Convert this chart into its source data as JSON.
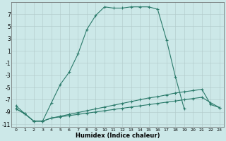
{
  "xlabel": "Humidex (Indice chaleur)",
  "bg_color": "#cce8e8",
  "grid_color": "#aaaaaa",
  "line_color": "#2a7a6a",
  "xlim": [
    -0.5,
    23.5
  ],
  "ylim": [
    -11.5,
    9.0
  ],
  "yticks": [
    -11,
    -9,
    -7,
    -5,
    -3,
    -1,
    1,
    3,
    5,
    7
  ],
  "xticks": [
    0,
    1,
    2,
    3,
    4,
    5,
    6,
    7,
    8,
    9,
    10,
    11,
    12,
    13,
    14,
    15,
    16,
    17,
    18,
    19,
    20,
    21,
    22,
    23
  ],
  "curve_main_x": [
    0,
    1,
    2,
    3,
    4,
    5,
    6,
    7,
    8,
    9,
    10,
    11,
    12,
    13,
    14,
    15,
    16,
    17,
    18,
    19
  ],
  "curve_main_y": [
    -8,
    -9.3,
    -10.5,
    -10.5,
    -7.5,
    -4.5,
    -2.5,
    0.5,
    4.5,
    6.8,
    8.2,
    8.0,
    8.0,
    8.2,
    8.2,
    8.2,
    7.8,
    2.8,
    -3.2,
    -8.5
  ],
  "curve2_x": [
    0,
    1,
    2,
    3,
    4,
    5,
    6,
    7,
    8,
    9,
    10,
    11,
    12,
    13,
    14,
    15,
    16,
    17,
    18,
    19,
    20,
    21,
    22,
    23
  ],
  "curve2_y": [
    -8.5,
    -9.3,
    -10.5,
    -10.5,
    -10.0,
    -9.7,
    -9.4,
    -9.1,
    -8.8,
    -8.5,
    -8.2,
    -7.9,
    -7.6,
    -7.3,
    -7.0,
    -6.7,
    -6.5,
    -6.2,
    -5.9,
    -5.7,
    -5.5,
    -5.3,
    -7.8,
    -8.3
  ],
  "curve3_x": [
    0,
    1,
    2,
    3,
    4,
    5,
    6,
    7,
    8,
    9,
    10,
    11,
    12,
    13,
    14,
    15,
    16,
    17,
    18,
    19,
    20,
    21,
    22,
    23
  ],
  "curve3_y": [
    -8.5,
    -9.3,
    -10.5,
    -10.5,
    -10.0,
    -9.8,
    -9.6,
    -9.4,
    -9.2,
    -9.0,
    -8.8,
    -8.6,
    -8.4,
    -8.2,
    -8.0,
    -7.8,
    -7.6,
    -7.4,
    -7.2,
    -7.0,
    -6.8,
    -6.6,
    -7.5,
    -8.3
  ]
}
